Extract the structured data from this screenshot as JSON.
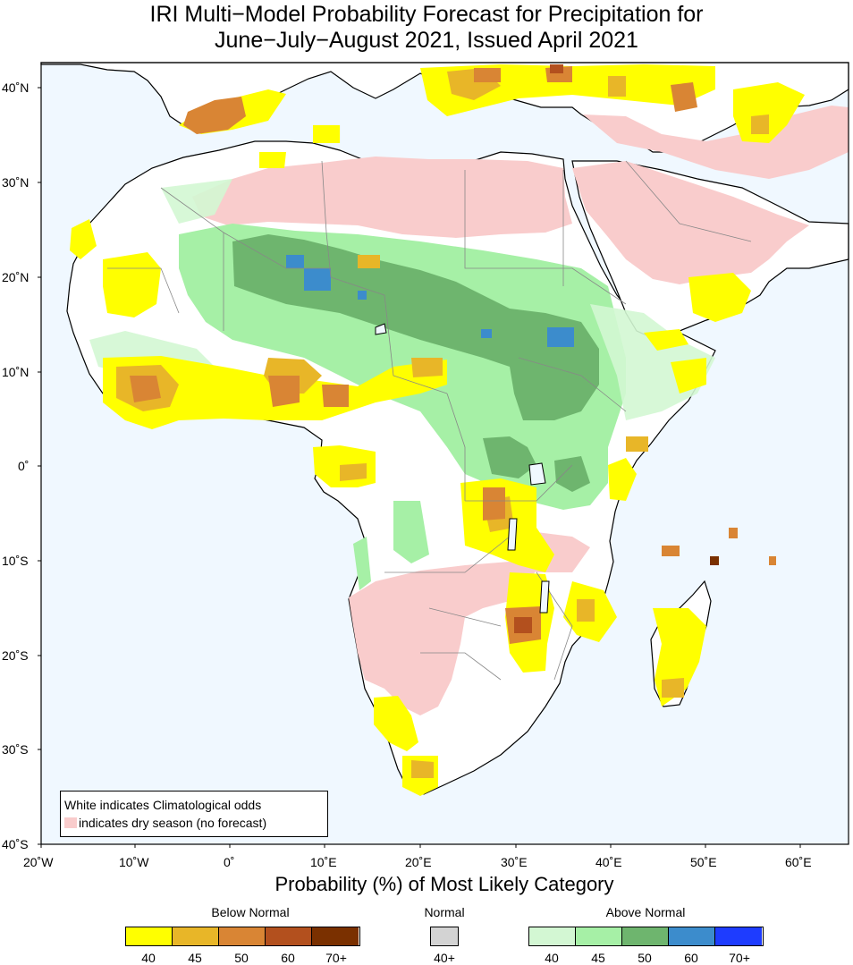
{
  "title_line1": "IRI Multi−Model Probability Forecast for Precipitation for",
  "title_line2": "June−July−August 2021, Issued April 2021",
  "axis_title": "Probability (%) of Most Likely Category",
  "lat_labels": [
    "40˚N",
    "30˚N",
    "20˚N",
    "10˚N",
    "0˚",
    "10˚S",
    "20˚S",
    "30˚S",
    "40˚S"
  ],
  "lon_labels": [
    "20˚W",
    "10˚W",
    "0˚",
    "10˚E",
    "20˚E",
    "30˚E",
    "40˚E",
    "50˚E",
    "60˚E"
  ],
  "legend_note": {
    "line1": "White indicates Climatological odds",
    "line2": "indicates dry season (no forecast)"
  },
  "colorbars": {
    "below": {
      "title": "Below Normal",
      "labels": [
        "40",
        "45",
        "50",
        "60",
        "70+"
      ],
      "colors": [
        "#ffff00",
        "#e8b628",
        "#d98534",
        "#b3501e",
        "#7a3000"
      ]
    },
    "normal": {
      "title": "Normal",
      "labels": [
        "40+"
      ],
      "colors": [
        "#d3d3d3"
      ]
    },
    "above": {
      "title": "Above Normal",
      "labels": [
        "40",
        "45",
        "50",
        "60",
        "70+"
      ],
      "colors": [
        "#d3f7d3",
        "#a6f0a6",
        "#6eb56e",
        "#3c8ccc",
        "#1e3cff"
      ]
    }
  },
  "colors": {
    "ocean": "#f0f8ff",
    "dry_season": "#f9cccc",
    "land": "#ffffff",
    "frame": "#000000"
  }
}
